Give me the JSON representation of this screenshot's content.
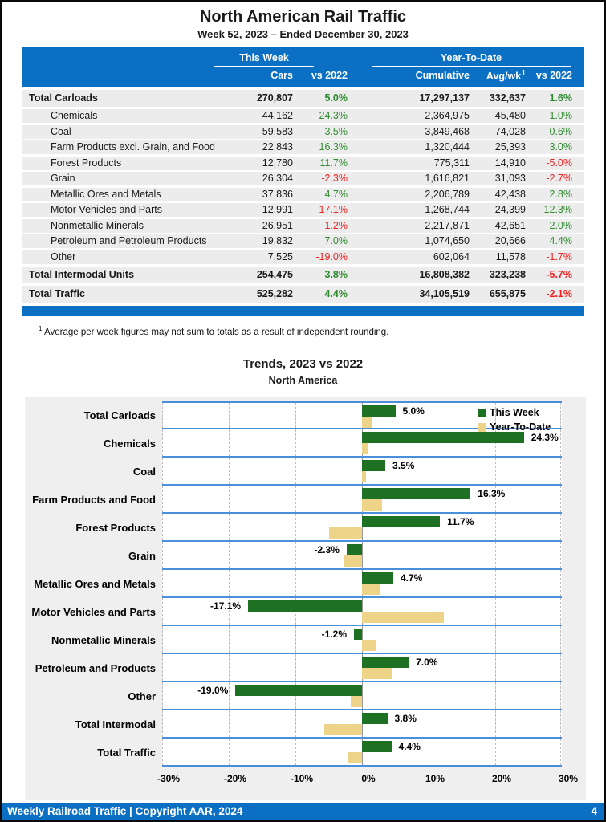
{
  "header": {
    "title": "North American Rail Traffic",
    "subtitle": "Week 52, 2023 – Ended December 30, 2023"
  },
  "table": {
    "group_this_week": "This Week",
    "group_year_to_date": "Year-To-Date",
    "col_cars": "Cars",
    "col_vs2022_week": "vs 2022",
    "col_cumulative": "Cumulative",
    "col_avg_wk": "Avg/wk",
    "col_avg_wk_sup": "1",
    "col_vs2022_ytd": "vs 2022",
    "rows": [
      {
        "label": "Total Carloads",
        "bold": true,
        "cars": "270,807",
        "vs2022": "5.0%",
        "cumulative": "17,297,137",
        "avg_wk": "332,637",
        "vs2022_ytd": "1.6%"
      },
      {
        "label": "Chemicals",
        "bold": false,
        "cars": "44,162",
        "vs2022": "24.3%",
        "cumulative": "2,364,975",
        "avg_wk": "45,480",
        "vs2022_ytd": "1.0%"
      },
      {
        "label": "Coal",
        "bold": false,
        "cars": "59,583",
        "vs2022": "3.5%",
        "cumulative": "3,849,468",
        "avg_wk": "74,028",
        "vs2022_ytd": "0.6%"
      },
      {
        "label": "Farm Products excl. Grain, and Food",
        "bold": false,
        "cars": "22,843",
        "vs2022": "16.3%",
        "cumulative": "1,320,444",
        "avg_wk": "25,393",
        "vs2022_ytd": "3.0%"
      },
      {
        "label": "Forest Products",
        "bold": false,
        "cars": "12,780",
        "vs2022": "11.7%",
        "cumulative": "775,311",
        "avg_wk": "14,910",
        "vs2022_ytd": "-5.0%"
      },
      {
        "label": "Grain",
        "bold": false,
        "cars": "26,304",
        "vs2022": "-2.3%",
        "cumulative": "1,616,821",
        "avg_wk": "31,093",
        "vs2022_ytd": "-2.7%"
      },
      {
        "label": "Metallic Ores and Metals",
        "bold": false,
        "cars": "37,836",
        "vs2022": "4.7%",
        "cumulative": "2,206,789",
        "avg_wk": "42,438",
        "vs2022_ytd": "2.8%"
      },
      {
        "label": "Motor Vehicles and Parts",
        "bold": false,
        "cars": "12,991",
        "vs2022": "-17.1%",
        "cumulative": "1,268,744",
        "avg_wk": "24,399",
        "vs2022_ytd": "12.3%"
      },
      {
        "label": "Nonmetallic Minerals",
        "bold": false,
        "cars": "26,951",
        "vs2022": "-1.2%",
        "cumulative": "2,217,871",
        "avg_wk": "42,651",
        "vs2022_ytd": "2.0%"
      },
      {
        "label": "Petroleum and Petroleum Products",
        "bold": false,
        "cars": "19,832",
        "vs2022": "7.0%",
        "cumulative": "1,074,650",
        "avg_wk": "20,666",
        "vs2022_ytd": "4.4%"
      },
      {
        "label": "Other",
        "bold": false,
        "cars": "7,525",
        "vs2022": "-19.0%",
        "cumulative": "602,064",
        "avg_wk": "11,578",
        "vs2022_ytd": "-1.7%"
      },
      {
        "label": "Total Intermodal Units",
        "bold": true,
        "cars": "254,475",
        "vs2022": "3.8%",
        "cumulative": "16,808,382",
        "avg_wk": "323,238",
        "vs2022_ytd": "-5.7%"
      },
      {
        "label": "Total Traffic",
        "bold": true,
        "cars": "525,282",
        "vs2022": "4.4%",
        "cumulative": "34,105,519",
        "avg_wk": "655,875",
        "vs2022_ytd": "-2.1%"
      }
    ]
  },
  "footnote": {
    "sup": "1",
    "text": "Average per week figures may not sum to totals as a result of independent rounding."
  },
  "chart_data": {
    "type": "bar",
    "orientation": "horizontal",
    "title": "Trends, 2023 vs 2022",
    "subtitle": "North America",
    "categories": [
      "Total Carloads",
      "Chemicals",
      "Coal",
      "Farm Products and Food",
      "Forest Products",
      "Grain",
      "Metallic Ores and Metals",
      "Motor Vehicles and Parts",
      "Nonmetallic Minerals",
      "Petroleum and Products",
      "Other",
      "Total Intermodal",
      "Total Traffic"
    ],
    "series": [
      {
        "name": "This Week",
        "color": "#1e7123",
        "values": [
          5.0,
          24.3,
          3.5,
          16.3,
          11.7,
          -2.3,
          4.7,
          -17.1,
          -1.2,
          7.0,
          -19.0,
          3.8,
          4.4
        ]
      },
      {
        "name": "Year-To-Date",
        "color": "#eed488",
        "values": [
          1.6,
          1.0,
          0.6,
          3.0,
          -5.0,
          -2.7,
          2.8,
          12.3,
          2.0,
          4.4,
          -1.7,
          -5.7,
          -2.1
        ]
      }
    ],
    "bar_labels_series": "This Week",
    "xlim": [
      -30,
      30
    ],
    "x_ticks": [
      "-30%",
      "-20%",
      "-10%",
      "0%",
      "10%",
      "20%",
      "30%"
    ],
    "grid": "dashed vertical every 10%, solid zero line",
    "legend_position": "top-right"
  },
  "footer": {
    "text": "Weekly Railroad Traffic | Copyright AAR, 2024",
    "page": "4"
  },
  "colors": {
    "blue": "#0b70c4",
    "band_line": "#4a90d8",
    "green_bar": "#1e7123",
    "yellow_bar": "#eed488",
    "pos_text": "#2e8b2e",
    "neg_text": "#ee2222",
    "row_bg": "#ececec",
    "chart_bg": "#efefef",
    "grid_line": "#bdbdbd",
    "zero_line": "#999999"
  }
}
